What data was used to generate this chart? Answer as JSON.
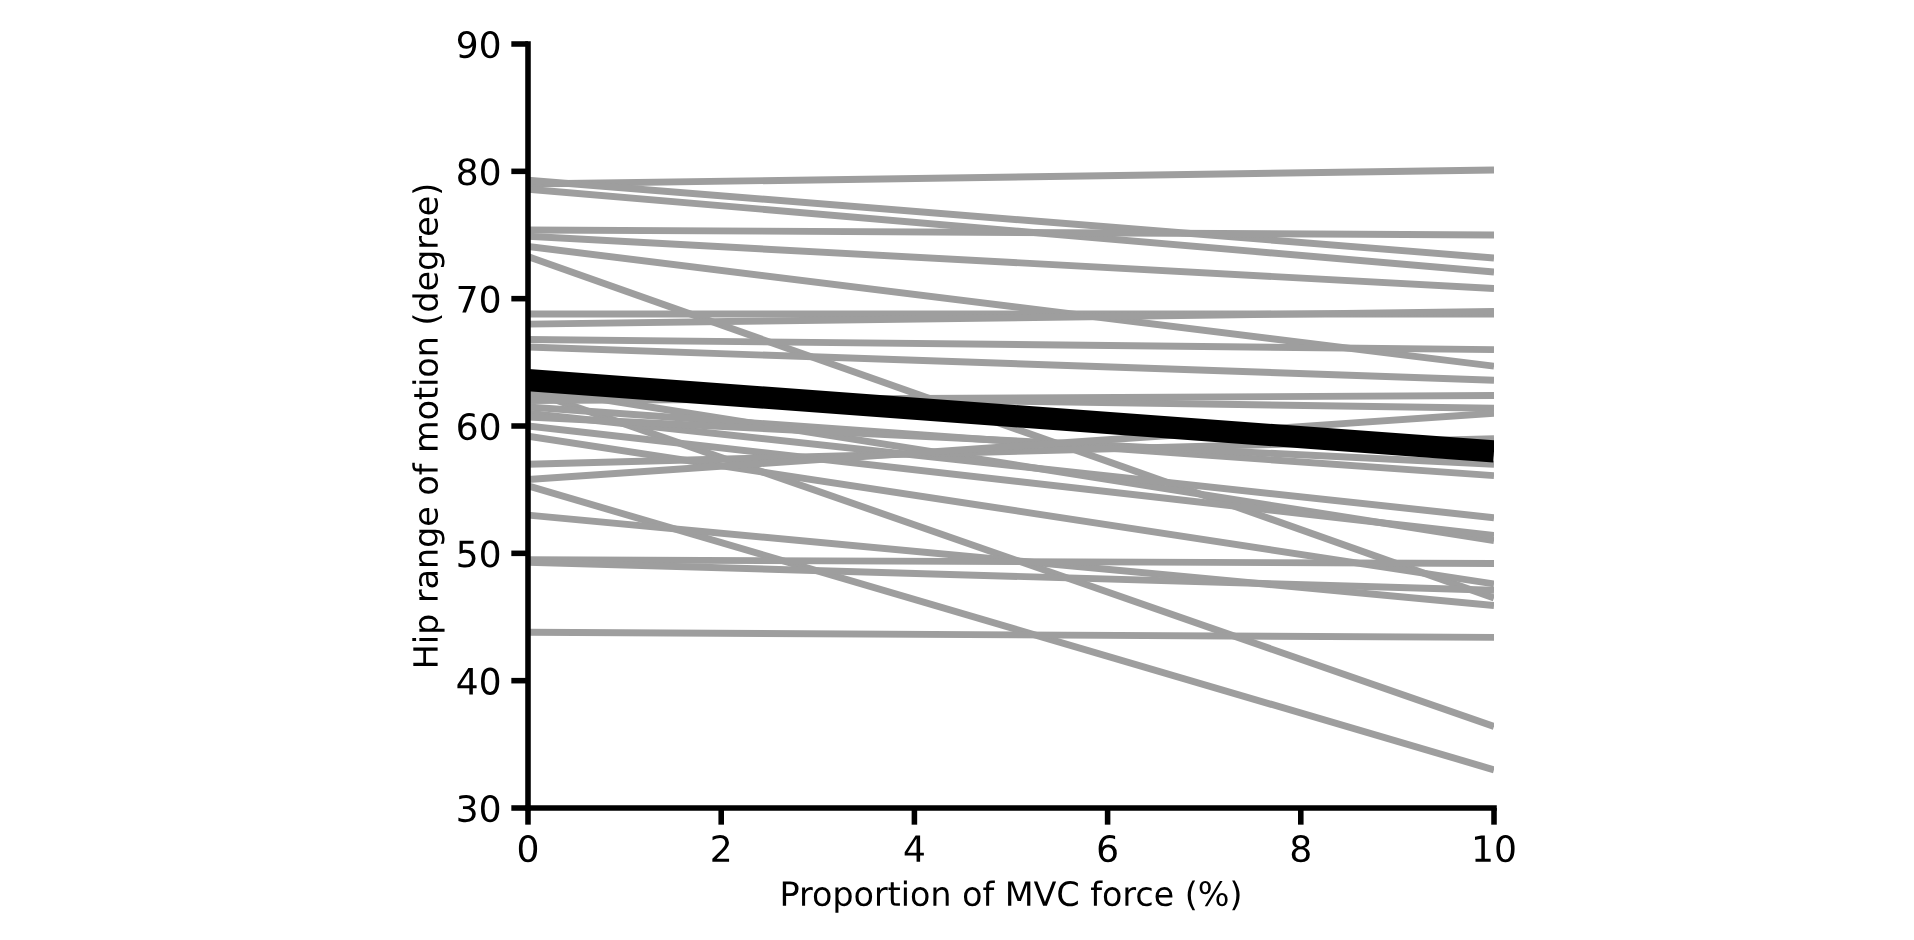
{
  "chart_data": {
    "type": "line",
    "xlabel": "Proportion of MVC force (%)",
    "ylabel": "Hip range of motion (degree)",
    "x": [
      0,
      10
    ],
    "xlim": [
      0,
      10
    ],
    "xticks": [
      0,
      2,
      4,
      6,
      8,
      10
    ],
    "ylim": [
      30,
      90
    ],
    "yticks": [
      30,
      40,
      50,
      60,
      70,
      80,
      90
    ],
    "grid": false,
    "legend": false,
    "marker": "none",
    "line_style": "solid",
    "series": [
      {
        "color": "#9e9e9e",
        "values": [
          79.0,
          80.1
        ]
      },
      {
        "color": "#9e9e9e",
        "values": [
          79.3,
          73.2
        ]
      },
      {
        "color": "#9e9e9e",
        "values": [
          78.6,
          72.1
        ]
      },
      {
        "color": "#9e9e9e",
        "values": [
          75.4,
          75.0
        ]
      },
      {
        "color": "#9e9e9e",
        "values": [
          74.9,
          70.8
        ]
      },
      {
        "color": "#9e9e9e",
        "values": [
          74.1,
          64.7
        ]
      },
      {
        "color": "#9e9e9e",
        "values": [
          73.3,
          46.5
        ]
      },
      {
        "color": "#9e9e9e",
        "values": [
          68.8,
          68.8
        ]
      },
      {
        "color": "#9e9e9e",
        "values": [
          68.0,
          69.0
        ]
      },
      {
        "color": "#9e9e9e",
        "values": [
          66.8,
          66.0
        ]
      },
      {
        "color": "#9e9e9e",
        "values": [
          66.2,
          63.6
        ]
      },
      {
        "color": "#9e9e9e",
        "values": [
          63.0,
          51.0
        ]
      },
      {
        "color": "#9e9e9e",
        "values": [
          62.8,
          36.4
        ]
      },
      {
        "color": "#9e9e9e",
        "values": [
          62.5,
          61.4
        ]
      },
      {
        "color": "#9e9e9e",
        "values": [
          62.0,
          62.4
        ]
      },
      {
        "color": "#9e9e9e",
        "values": [
          61.5,
          56.1
        ]
      },
      {
        "color": "#9e9e9e",
        "values": [
          61.0,
          52.8
        ]
      },
      {
        "color": "#9e9e9e",
        "values": [
          60.7,
          57.0
        ]
      },
      {
        "color": "#9e9e9e",
        "values": [
          60.0,
          51.4
        ]
      },
      {
        "color": "#9e9e9e",
        "values": [
          59.2,
          47.6
        ]
      },
      {
        "color": "#9e9e9e",
        "values": [
          57.0,
          59.0
        ]
      },
      {
        "color": "#9e9e9e",
        "values": [
          55.8,
          61.0
        ]
      },
      {
        "color": "#9e9e9e",
        "values": [
          55.3,
          33.0
        ]
      },
      {
        "color": "#9e9e9e",
        "values": [
          53.0,
          45.9
        ]
      },
      {
        "color": "#9e9e9e",
        "values": [
          49.5,
          49.2
        ]
      },
      {
        "color": "#9e9e9e",
        "values": [
          49.3,
          47.1
        ]
      },
      {
        "color": "#9e9e9e",
        "values": [
          43.8,
          43.4
        ]
      },
      {
        "color": "#000000",
        "values": [
          63.6,
          58.0
        ]
      }
    ]
  }
}
